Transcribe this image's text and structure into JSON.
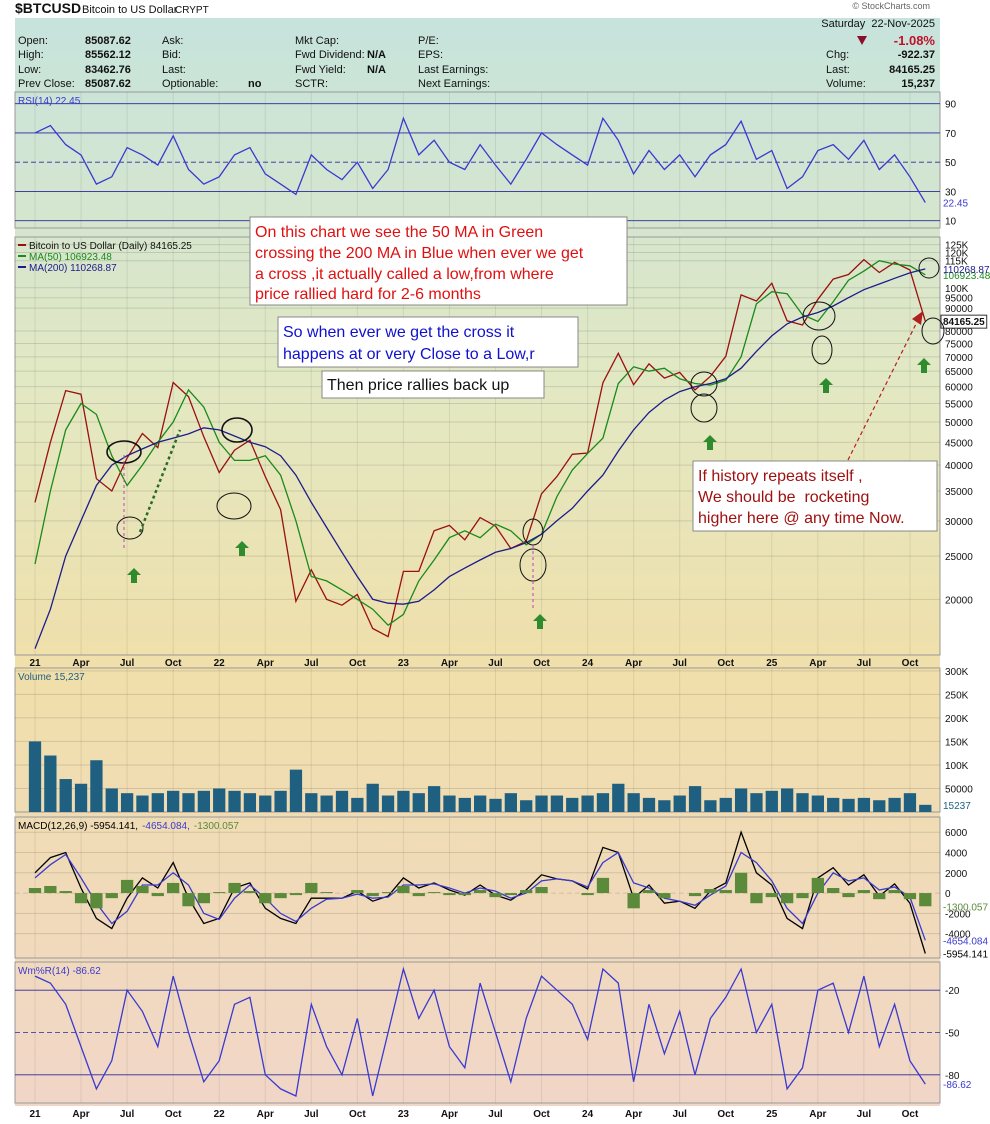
{
  "header": {
    "symbol": "$BTCUSD",
    "name": "Bitcoin to US Dollar",
    "exchange": "CRYPT",
    "date": "Saturday  22-Nov-2025",
    "change_pct": "-1.08%",
    "copyright": "© StockCharts.com",
    "columns": [
      [
        [
          "Open:",
          "85087.62"
        ],
        [
          "High:",
          "85562.12"
        ],
        [
          "Low:",
          "83462.76"
        ],
        [
          "Prev Close:",
          "85087.62"
        ]
      ],
      [
        [
          "Ask:",
          ""
        ],
        [
          "Bid:",
          ""
        ],
        [
          "Last:",
          ""
        ],
        [
          "Optionable:",
          "no"
        ]
      ],
      [
        [
          "Mkt Cap:",
          ""
        ],
        [
          "Fwd Dividend:",
          "N/A"
        ],
        [
          "Fwd Yield:",
          "N/A"
        ],
        [
          "SCTR:",
          ""
        ]
      ],
      [
        [
          "P/E:",
          ""
        ],
        [
          "EPS:",
          ""
        ],
        [
          "Last Earnings:",
          ""
        ],
        [
          "Next Earnings:",
          ""
        ]
      ]
    ],
    "right": [
      [
        "Chg:",
        "-922.37"
      ],
      [
        "Last:",
        "84165.25"
      ],
      [
        "Volume:",
        "15,237"
      ]
    ]
  },
  "annotations": [
    {
      "lines": [
        "On this chart we see the 50 MA in Green",
        "crossing the 200 MA in Blue when ever we get",
        "a cross ,it actually called a low,from where",
        "price rallied hard for 2-6 months"
      ]
    },
    {
      "lines": [
        "So when ever we get the cross it",
        "happens at or very Close to a Low,r"
      ]
    },
    {
      "lines": [
        "Then price rallies back up"
      ]
    },
    {
      "lines": [
        "If history repeats itself ,",
        "We should be  rocketing",
        "higher here @ any time Now."
      ]
    }
  ],
  "chart_data": [
    {
      "type": "line",
      "ylim": [
        5,
        98
      ],
      "yticks": [
        10,
        30,
        50,
        70,
        90
      ],
      "grid": true,
      "series": [
        {
          "name": "RSI(14) 22.45",
          "color": "#3a3ad0",
          "values": [
            70,
            75,
            62,
            55,
            35,
            40,
            60,
            55,
            48,
            68,
            45,
            35,
            40,
            55,
            60,
            42,
            35,
            28,
            55,
            45,
            38,
            50,
            32,
            45,
            80,
            55,
            65,
            50,
            45,
            62,
            48,
            35,
            52,
            70,
            62,
            55,
            48,
            80,
            65,
            42,
            58,
            45,
            55,
            40,
            55,
            62,
            78,
            52,
            58,
            32,
            40,
            58,
            62,
            52,
            65,
            45,
            55,
            40,
            22.45
          ]
        }
      ]
    },
    {
      "type": "line",
      "log_scale": true,
      "ylim": [
        15000,
        130000
      ],
      "grid": true,
      "categories": [
        "21",
        null,
        null,
        "Apr",
        null,
        null,
        "Jul",
        null,
        null,
        "Oct",
        null,
        null,
        "22",
        null,
        null,
        "Apr",
        null,
        null,
        "Jul",
        null,
        null,
        "Oct",
        null,
        null,
        "23",
        null,
        null,
        "Apr",
        null,
        null,
        "Jul",
        null,
        null,
        "Oct",
        null,
        null,
        "24",
        null,
        null,
        "Apr",
        null,
        null,
        "Jul",
        null,
        null,
        "Oct",
        null,
        null,
        "25",
        null,
        null,
        "Apr",
        null,
        null,
        "Jul",
        null,
        null,
        "Oct",
        null
      ],
      "yticks": [
        20000,
        25000,
        30000,
        35000,
        40000,
        45000,
        50000,
        55000,
        60000,
        65000,
        70000,
        75000,
        80000,
        90000,
        95000,
        {
          "value": 100000,
          "label": "100K"
        },
        {
          "value": 115000,
          "label": "115K"
        },
        {
          "value": 120000,
          "label": "120K"
        },
        {
          "value": 125000,
          "label": "125K"
        }
      ],
      "series": [
        {
          "name": "Bitcoin to US Dollar (Daily) 84165.25",
          "color": "#9a1010",
          "values": [
            33000,
            45000,
            58800,
            57700,
            37300,
            35000,
            41500,
            47100,
            43800,
            61300,
            57000,
            46300,
            38500,
            43200,
            45500,
            37700,
            31800,
            19800,
            23300,
            20000,
            19400,
            20500,
            17200,
            16500,
            23100,
            23100,
            28500,
            29300,
            27200,
            30500,
            29200,
            26000,
            27000,
            34500,
            37700,
            42300,
            42600,
            61200,
            71300,
            60600,
            67500,
            62700,
            64600,
            59000,
            63300,
            70200,
            96400,
            93400,
            102400,
            84300,
            82500,
            94200,
            104600,
            107100,
            115700,
            108200,
            114000,
            109600,
            84165.25
          ]
        },
        {
          "name": "MA(50) 106923.48",
          "color": "#1a8a1a",
          "values": [
            24000,
            35000,
            48000,
            55000,
            52000,
            42000,
            36000,
            40000,
            45000,
            50000,
            59000,
            54000,
            45000,
            41000,
            41000,
            42000,
            38000,
            30000,
            22500,
            22000,
            21000,
            20000,
            19000,
            17500,
            18500,
            22000,
            24500,
            27500,
            28500,
            27500,
            29500,
            28500,
            26500,
            28000,
            34000,
            39000,
            42500,
            46000,
            61000,
            66500,
            65000,
            66000,
            62500,
            61000,
            60500,
            62000,
            70000,
            92000,
            98000,
            97000,
            87000,
            84000,
            93000,
            104000,
            109000,
            115000,
            113000,
            112000,
            106923.48
          ]
        },
        {
          "name": "MA(200) 110268.87",
          "color": "#1c1c8c",
          "values": [
            15500,
            19000,
            25000,
            30000,
            36000,
            40000,
            42000,
            43500,
            45000,
            46000,
            47000,
            48500,
            48000,
            46500,
            45000,
            44000,
            42000,
            38000,
            33000,
            29000,
            25500,
            22500,
            20000,
            19600,
            19500,
            19800,
            21000,
            22500,
            23500,
            24500,
            25500,
            26000,
            26800,
            28000,
            30000,
            32000,
            35000,
            38000,
            43000,
            48000,
            52500,
            56000,
            58500,
            60000,
            61000,
            62500,
            66000,
            72000,
            78000,
            83000,
            86000,
            88000,
            91000,
            95000,
            99000,
            102000,
            105000,
            108000,
            110268.87
          ]
        }
      ]
    },
    {
      "type": "bar",
      "ylim": [
        0,
        306000
      ],
      "grid": true,
      "yticks": [
        50000,
        {
          "value": 100000,
          "label": "100K"
        },
        {
          "value": 150000,
          "label": "150K"
        },
        {
          "value": 200000,
          "label": "200K"
        },
        {
          "value": 250000,
          "label": "250K"
        },
        {
          "value": 300000,
          "label": "300K"
        }
      ],
      "series": [
        {
          "name": "Volume 15,237",
          "color": "#1f5f80",
          "values": [
            150000,
            120000,
            70000,
            60000,
            110000,
            50000,
            40000,
            35000,
            40000,
            45000,
            40000,
            45000,
            50000,
            45000,
            40000,
            35000,
            45000,
            90000,
            40000,
            35000,
            45000,
            30000,
            60000,
            35000,
            45000,
            40000,
            55000,
            35000,
            30000,
            35000,
            28000,
            40000,
            25000,
            35000,
            35000,
            30000,
            35000,
            40000,
            60000,
            40000,
            30000,
            25000,
            35000,
            55000,
            25000,
            30000,
            50000,
            40000,
            45000,
            50000,
            40000,
            35000,
            30000,
            28000,
            30000,
            25000,
            30000,
            40000,
            15237
          ]
        }
      ]
    },
    {
      "type": "line",
      "ylim": [
        -6400,
        7500
      ],
      "grid": true,
      "yticks": [
        -4000,
        -2000,
        0,
        2000,
        4000,
        6000
      ],
      "series": [
        {
          "name": "MACD(12,26,9) -5954.141,",
          "color": "#000000",
          "values": [
            2000,
            3500,
            4000,
            500,
            -2500,
            -3500,
            -500,
            1500,
            500,
            3000,
            -500,
            -3000,
            -2500,
            500,
            1000,
            -1500,
            -2500,
            -3000,
            -500,
            -500,
            -500,
            200,
            -800,
            -300,
            1500,
            500,
            1000,
            300,
            -200,
            800,
            -200,
            -700,
            300,
            1800,
            1400,
            1200,
            400,
            4500,
            4000,
            -500,
            800,
            -1000,
            -800,
            -1500,
            200,
            1000,
            6000,
            2000,
            800,
            -2500,
            -3500,
            1500,
            2500,
            800,
            1800,
            -300,
            900,
            -1000,
            -5954.141
          ]
        },
        {
          "name": "-4654.084,",
          "color": "#3a3ad0",
          "values": [
            1500,
            2800,
            3800,
            1500,
            -1000,
            -3000,
            -1800,
            800,
            800,
            2000,
            800,
            -2000,
            -2600,
            -500,
            800,
            -500,
            -2000,
            -2800,
            -1500,
            -600,
            -500,
            -100,
            -500,
            -400,
            800,
            800,
            900,
            500,
            0,
            500,
            200,
            -500,
            0,
            1200,
            1400,
            1200,
            600,
            3000,
            4000,
            1000,
            500,
            -500,
            -800,
            -1200,
            -200,
            700,
            4000,
            3000,
            1200,
            -1500,
            -3000,
            0,
            2000,
            1200,
            1500,
            300,
            600,
            -400,
            -4654.084
          ]
        },
        {
          "name": "-1300.057",
          "color": "#5a8a3a",
          "type": "bar",
          "values": [
            500,
            700,
            200,
            -1000,
            -1500,
            -500,
            1300,
            700,
            -300,
            1000,
            -1300,
            -1000,
            100,
            1000,
            200,
            -1000,
            -500,
            -200,
            1000,
            100,
            0,
            300,
            -300,
            100,
            700,
            -300,
            100,
            -200,
            -200,
            300,
            -400,
            -200,
            300,
            600,
            0,
            0,
            -200,
            1500,
            0,
            -1500,
            300,
            -500,
            0,
            -300,
            400,
            300,
            2000,
            -1000,
            -400,
            -1000,
            -500,
            1500,
            500,
            -400,
            300,
            -600,
            300,
            -600,
            -1300.057
          ]
        }
      ]
    },
    {
      "type": "line",
      "ylim": [
        -100,
        0
      ],
      "grid": true,
      "yticks": [
        -80,
        -50,
        -20
      ],
      "series": [
        {
          "name": "Wm%R(14) -86.62",
          "color": "#3a3ad0",
          "values": [
            -10,
            -15,
            -30,
            -60,
            -90,
            -70,
            -20,
            -35,
            -60,
            -10,
            -50,
            -85,
            -70,
            -30,
            -25,
            -80,
            -90,
            -95,
            -30,
            -60,
            -80,
            -40,
            -95,
            -50,
            -5,
            -40,
            -20,
            -60,
            -75,
            -15,
            -50,
            -85,
            -40,
            -10,
            -20,
            -30,
            -55,
            -5,
            -15,
            -85,
            -30,
            -65,
            -35,
            -80,
            -40,
            -25,
            -5,
            -50,
            -30,
            -90,
            -75,
            -20,
            -15,
            -50,
            -10,
            -60,
            -30,
            -70,
            -86.62
          ]
        }
      ]
    }
  ]
}
